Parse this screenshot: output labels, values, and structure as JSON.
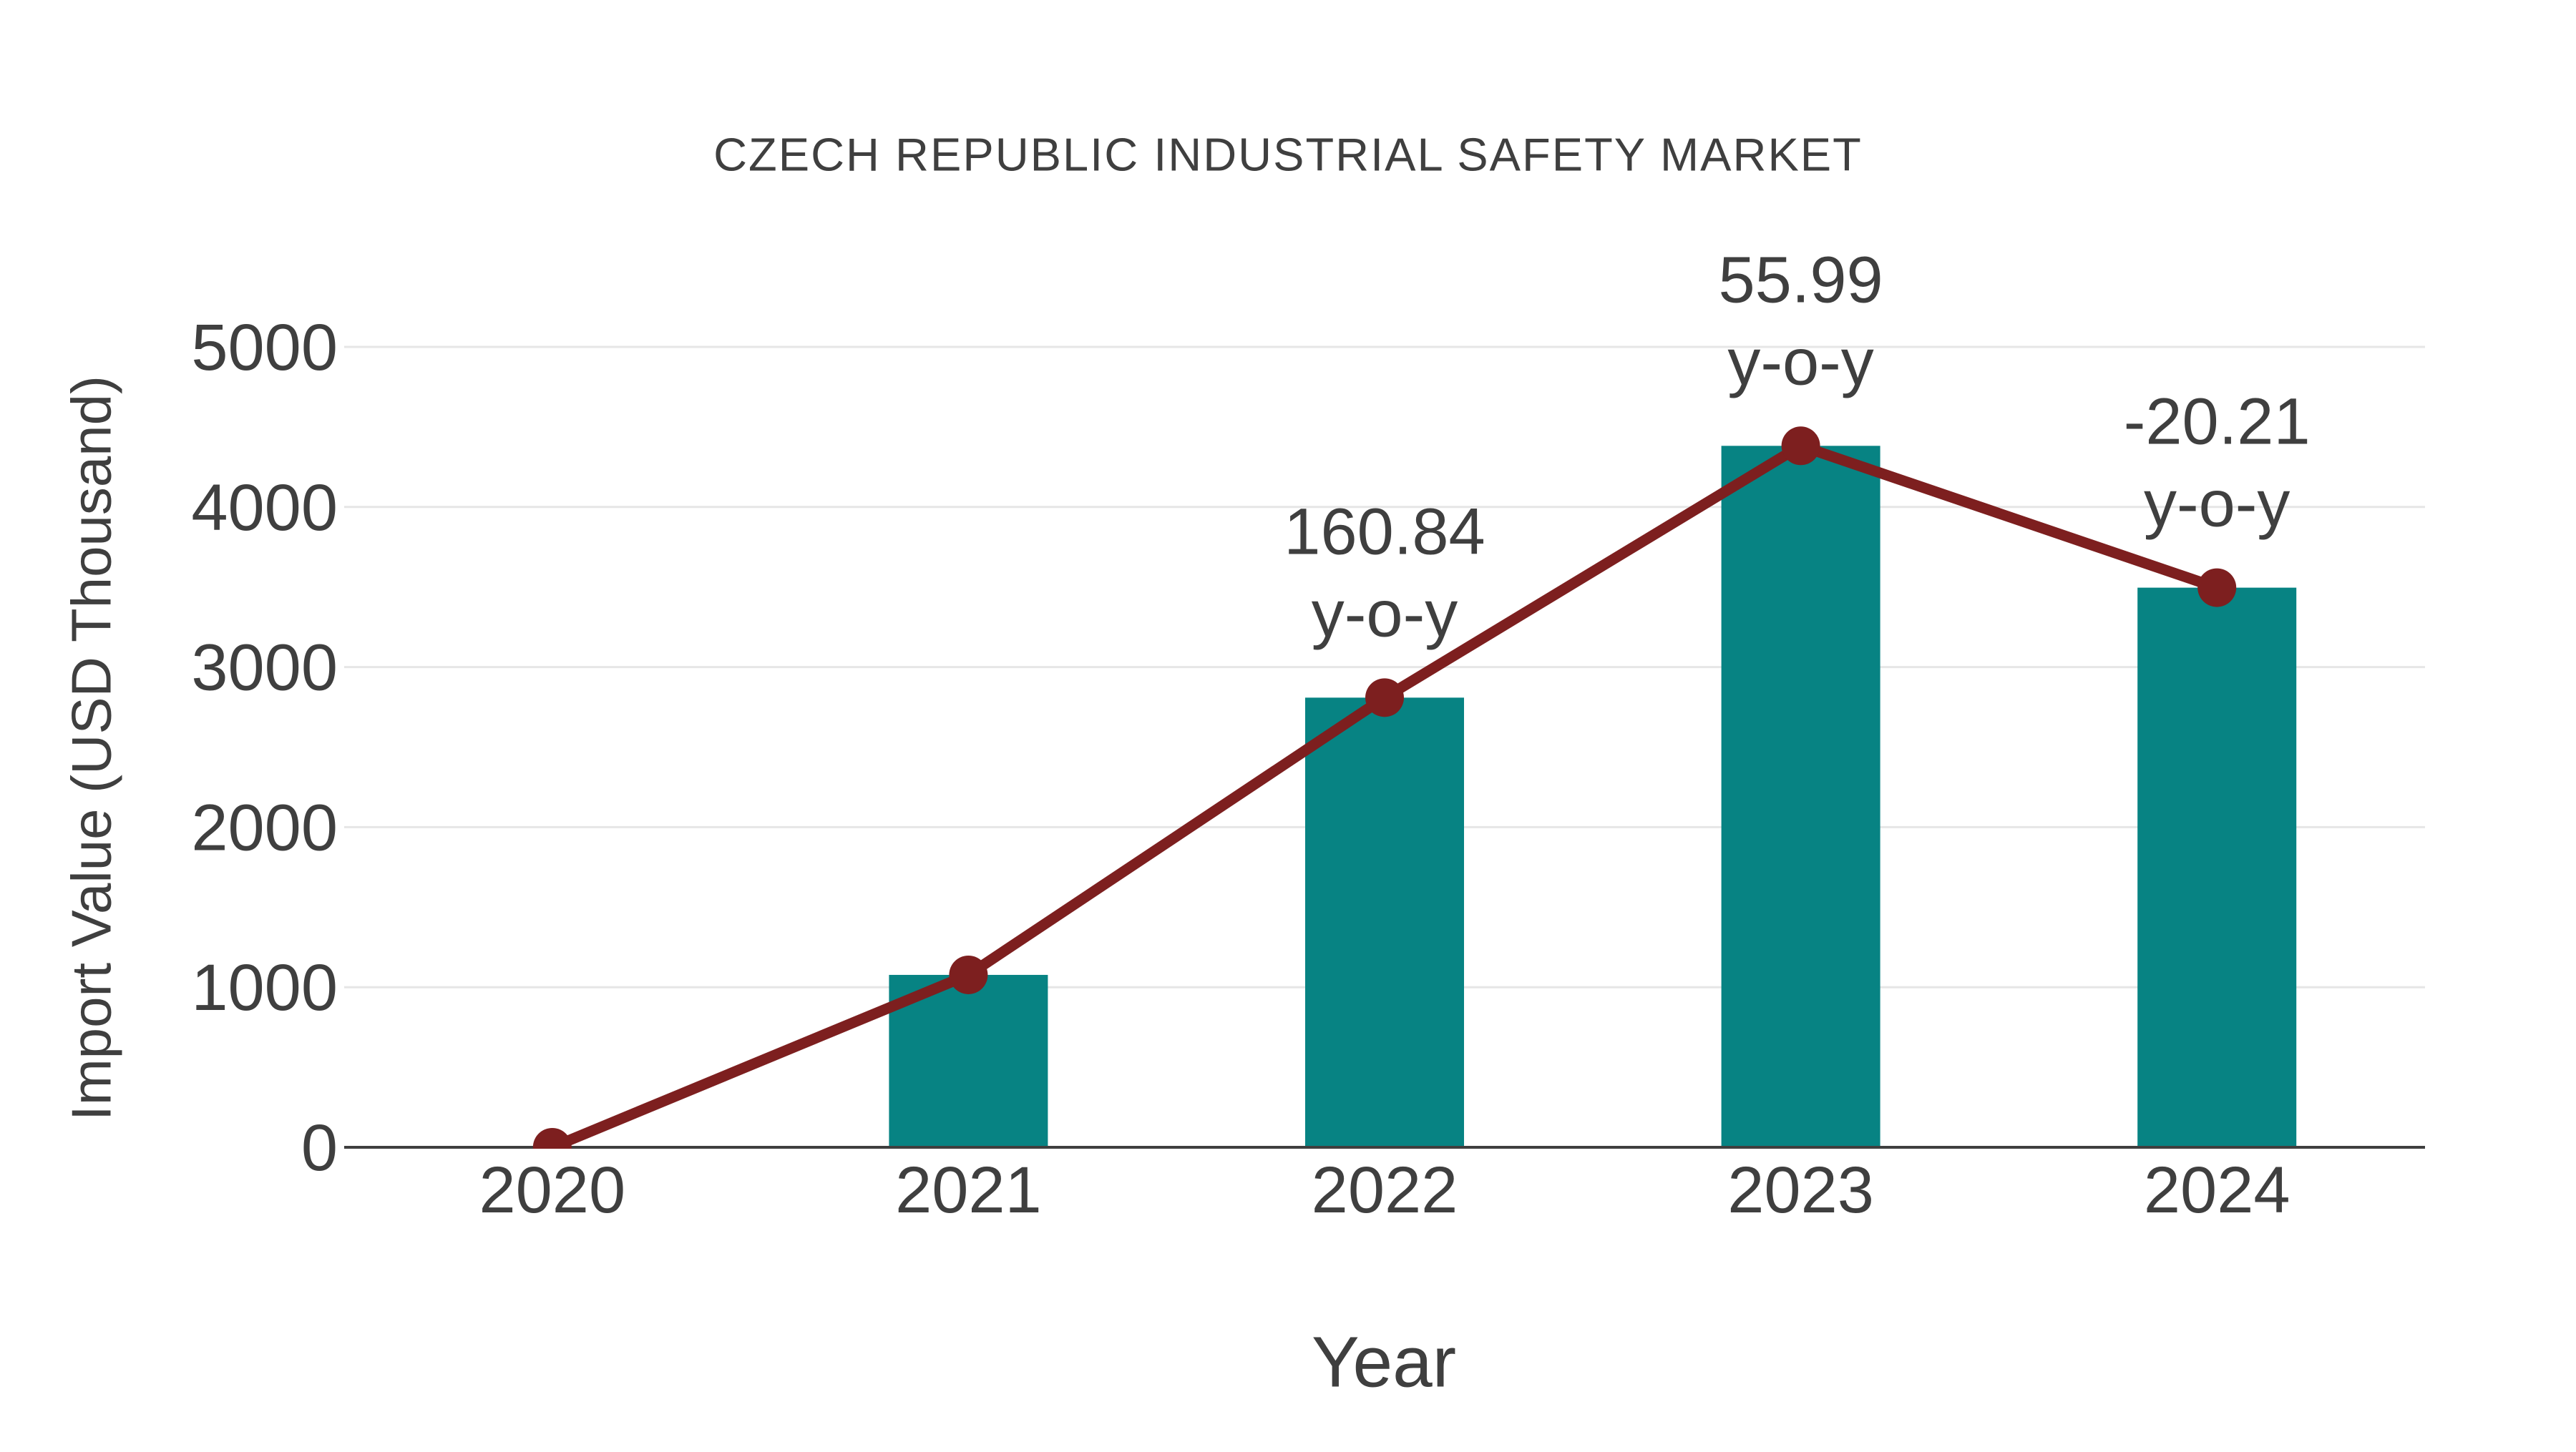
{
  "chart_data": {
    "type": "bar",
    "title": "CZECH REPUBLIC INDUSTRIAL SAFETY MARKET",
    "xlabel": "Year",
    "ylabel": "Import Value (USD Thousand)",
    "categories": [
      "2020",
      "2021",
      "2022",
      "2023",
      "2024"
    ],
    "series": [
      {
        "name": "Import Value bars",
        "type": "bar",
        "values": [
          0,
          1077,
          2809,
          4382,
          3496
        ],
        "color": "#078383"
      },
      {
        "name": "Import Value trend line",
        "type": "line",
        "values": [
          0,
          1077,
          2809,
          4382,
          3496
        ],
        "color": "#7d1f1f"
      }
    ],
    "annotations": [
      {
        "category": "2022",
        "lines": [
          "160.84",
          "y-o-y"
        ]
      },
      {
        "category": "2023",
        "lines": [
          "55.99",
          "y-o-y"
        ]
      },
      {
        "category": "2024",
        "lines": [
          "-20.21",
          "y-o-y"
        ]
      }
    ],
    "yticks": [
      0,
      1000,
      2000,
      3000,
      4000,
      5000
    ],
    "ylim": [
      0,
      5000
    ],
    "grid": "horizontal",
    "legend": "none",
    "colors": {
      "bar": "#078383",
      "line": "#7d1f1f",
      "text": "#3f3f3f",
      "grid": "#e6e6e6",
      "axis": "#3f3f3f",
      "background": "#ffffff"
    }
  }
}
